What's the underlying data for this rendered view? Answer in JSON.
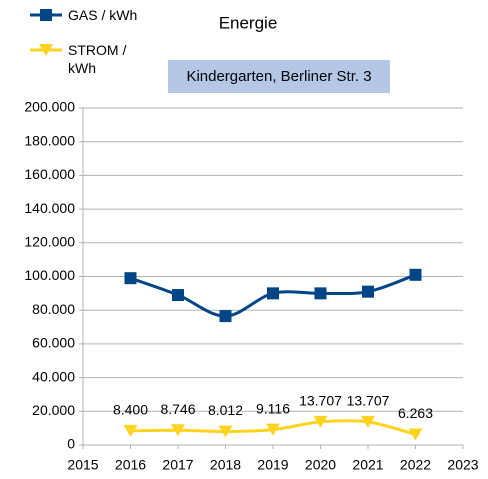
{
  "chart_data": {
    "type": "line",
    "title": "Energie",
    "subtitle": "Kindergarten, Berliner Str. 3",
    "x": [
      2016,
      2017,
      2018,
      2019,
      2020,
      2021,
      2022
    ],
    "series": [
      {
        "name": "GAS / kWh",
        "color": "#004586",
        "marker": "square",
        "values": [
          99000,
          89000,
          76500,
          90000,
          90000,
          91000,
          101000
        ]
      },
      {
        "name": "STROM / kWh",
        "color": "#ffd320",
        "marker": "triangle",
        "values": [
          8400,
          8746,
          8012,
          9116,
          13707,
          13707,
          6263
        ],
        "value_labels": [
          "8.400",
          "8.746",
          "8.012",
          "9.116",
          "13.707",
          "13.707",
          "6.263"
        ]
      }
    ],
    "xlim": [
      2015,
      2023
    ],
    "xticks": [
      2015,
      2016,
      2017,
      2018,
      2019,
      2020,
      2021,
      2022,
      2023
    ],
    "ylim": [
      0,
      200000
    ],
    "yticks": [
      0,
      {
        "value": 20000,
        "label": "20.000"
      },
      {
        "value": 40000,
        "label": "40.000"
      },
      {
        "value": 60000,
        "label": "60.000"
      },
      {
        "value": 80000,
        "label": "80.000"
      },
      {
        "value": 100000,
        "label": "100.000"
      },
      {
        "value": 120000,
        "label": "120.000"
      },
      {
        "value": 140000,
        "label": "140.000"
      },
      {
        "value": 160000,
        "label": "160.000"
      },
      {
        "value": 180000,
        "label": "180.000"
      },
      {
        "value": 200000,
        "label": "200.000"
      }
    ],
    "grid": true,
    "legend": "top-left"
  }
}
